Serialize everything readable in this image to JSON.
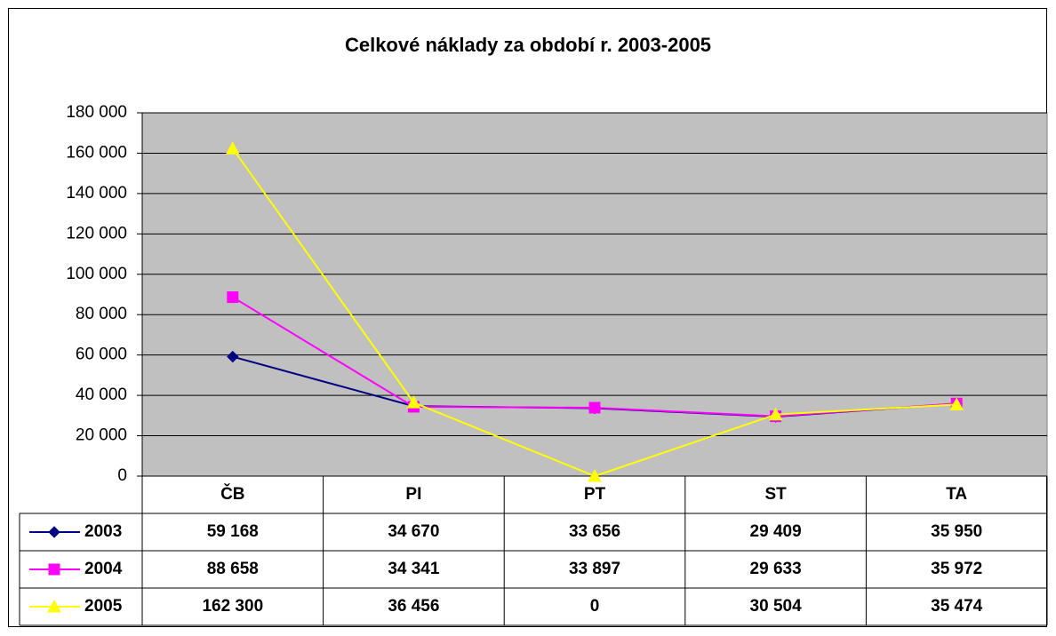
{
  "chart_data": {
    "type": "line",
    "title": "Celkové náklady za období r. 2003-2005",
    "categories": [
      "ČB",
      "PI",
      "PT",
      "ST",
      "TA"
    ],
    "series": [
      {
        "name": "2003",
        "color": "#000080",
        "marker": "diamond",
        "values": [
          59168,
          34670,
          33656,
          29409,
          35950
        ],
        "value_labels": [
          "59 168",
          "34 670",
          "33 656",
          "29 409",
          "35 950"
        ]
      },
      {
        "name": "2004",
        "color": "#FF00FF",
        "marker": "square",
        "values": [
          88658,
          34341,
          33897,
          29633,
          35972
        ],
        "value_labels": [
          "88 658",
          "34 341",
          "33 897",
          "29 633",
          "35 972"
        ]
      },
      {
        "name": "2005",
        "color": "#FFFF00",
        "marker": "triangle",
        "values": [
          162300,
          36456,
          0,
          30504,
          35474
        ],
        "value_labels": [
          "162 300",
          "36 456",
          "0",
          "30 504",
          "35 474"
        ]
      }
    ],
    "ylim": [
      0,
      180000
    ],
    "yticks": [
      0,
      {
        "value": 20000,
        "label": "20 000"
      },
      {
        "value": 40000,
        "label": "40 000"
      },
      {
        "value": 60000,
        "label": "60 000"
      },
      {
        "value": 80000,
        "label": "80 000"
      },
      {
        "value": 100000,
        "label": "100 000"
      },
      {
        "value": 120000,
        "label": "120 000"
      },
      {
        "value": 140000,
        "label": "140 000"
      },
      {
        "value": 160000,
        "label": "160 000"
      },
      {
        "value": 180000,
        "label": "180 000"
      }
    ],
    "grid": true,
    "plot_background": "#C0C0C0"
  }
}
